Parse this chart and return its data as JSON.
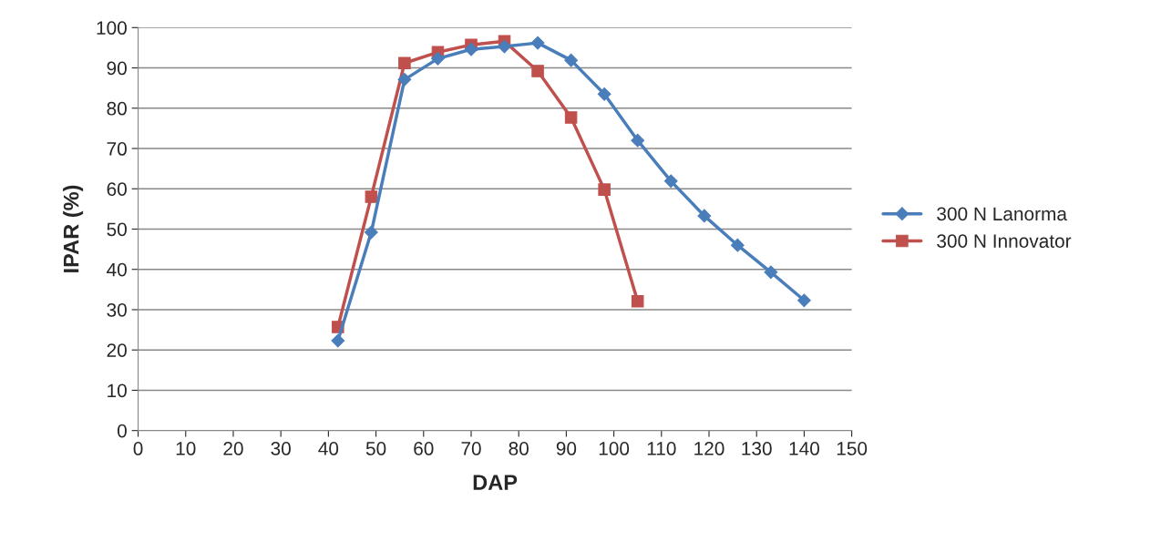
{
  "chart_data": {
    "type": "line",
    "xlabel": "DAP",
    "ylabel": "IPAR (%)",
    "xlim": [
      0,
      150
    ],
    "xticks": [
      0,
      10,
      20,
      30,
      40,
      50,
      60,
      70,
      80,
      90,
      100,
      110,
      120,
      130,
      140,
      150
    ],
    "ylim": [
      0,
      100
    ],
    "yticks": [
      0,
      10,
      20,
      30,
      40,
      50,
      60,
      70,
      80,
      90,
      100
    ],
    "grid": "y",
    "legend": "right",
    "series": [
      {
        "name": "300 N Lanorma",
        "color": "#4a7ebb",
        "marker": "diamond",
        "x": [
          42,
          49,
          56,
          63,
          70,
          77,
          84,
          91,
          98,
          105,
          112,
          119,
          126,
          133,
          140
        ],
        "values": [
          22.3,
          49.2,
          87.1,
          92.3,
          94.6,
          95.3,
          96.2,
          91.9,
          83.5,
          72,
          61.9,
          53.3,
          46,
          39.3,
          32.3
        ]
      },
      {
        "name": "300 N Innovator",
        "color": "#c0504d",
        "marker": "square",
        "x": [
          42,
          49,
          56,
          63,
          70,
          77,
          84,
          91,
          98,
          105
        ],
        "values": [
          25.7,
          58,
          91.2,
          93.9,
          95.7,
          96.6,
          89.2,
          77.7,
          59.8,
          32.1
        ]
      }
    ]
  }
}
